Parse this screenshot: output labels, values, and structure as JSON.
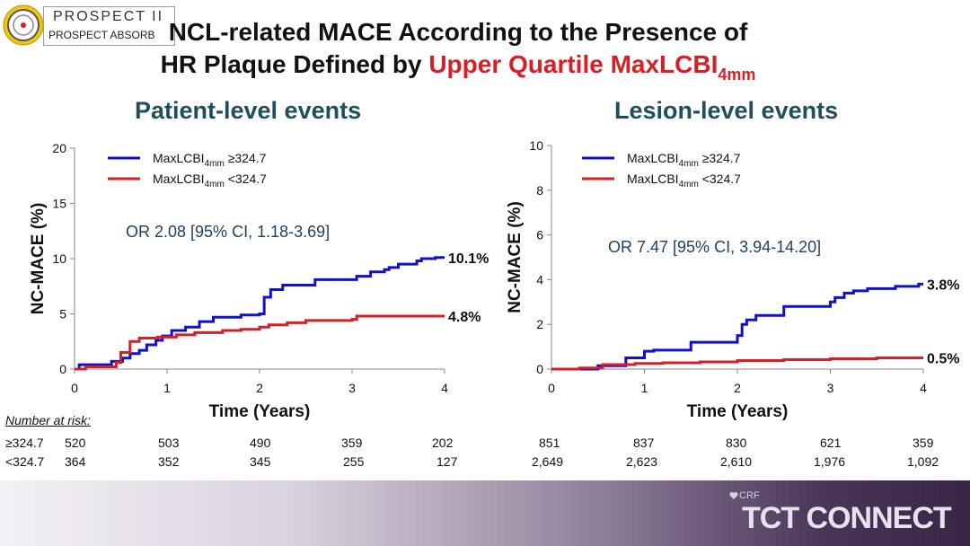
{
  "logo": {
    "line1": "PROSPECT II",
    "line2": "PROSPECT ABSORB",
    "icon": "prospect-seal-icon"
  },
  "title": {
    "line1": "NCL-related MACE According to the Presence of",
    "line2_prefix": "HR Plaque Defined by ",
    "line2_highlight": "Upper Quartile MaxLCBI",
    "line2_sub": "4mm",
    "highlight_color": "#d42027"
  },
  "panels": {
    "patient_title": "Patient-level events",
    "lesion_title": "Lesion-level events",
    "title_color": "#1f4e5f"
  },
  "chart_data": [
    {
      "type": "line",
      "title": "Patient-level events",
      "xlabel": "Time (Years)",
      "ylabel": "NC-MACE (%)",
      "xlim": [
        0,
        4
      ],
      "ylim": [
        0,
        20
      ],
      "xticks": [
        "0",
        "1",
        "2",
        "3",
        "4"
      ],
      "yticks": [
        "0",
        "5",
        "10",
        "15",
        "20"
      ],
      "legend_position": "top-left",
      "annotation": "OR 2.08 [95% CI, 1.18-3.69]",
      "series": [
        {
          "name_prefix": "MaxLCBI",
          "name_sub": "4mm",
          "name_suffix": " ≥324.7",
          "color": "#1111cc",
          "end_label": "10.1%",
          "x": [
            0,
            0.05,
            0.4,
            0.52,
            0.6,
            0.7,
            0.78,
            0.88,
            0.95,
            1.05,
            1.2,
            1.35,
            1.5,
            1.8,
            2.0,
            2.05,
            2.12,
            2.25,
            2.6,
            3.0,
            3.05,
            3.2,
            3.35,
            3.4,
            3.5,
            3.7,
            3.75,
            3.9,
            4.0
          ],
          "y": [
            0,
            0.4,
            0.7,
            1.0,
            1.4,
            1.7,
            2.2,
            2.6,
            3.0,
            3.5,
            3.8,
            4.3,
            4.7,
            4.9,
            5.0,
            6.5,
            7.2,
            7.6,
            8.1,
            8.1,
            8.4,
            8.8,
            9.0,
            9.2,
            9.5,
            9.8,
            10.0,
            10.1,
            10.1
          ]
        },
        {
          "name_prefix": "MaxLCBI",
          "name_sub": "4mm",
          "name_suffix": " <324.7",
          "color": "#d42027",
          "end_label": "4.8%",
          "x": [
            0,
            0.12,
            0.45,
            0.5,
            0.6,
            0.7,
            0.9,
            1.1,
            1.3,
            1.6,
            1.8,
            2.0,
            2.1,
            2.3,
            2.5,
            2.8,
            3.0,
            3.05,
            3.5,
            4.0
          ],
          "y": [
            0,
            0.2,
            0.6,
            1.5,
            2.5,
            2.8,
            2.9,
            3.1,
            3.3,
            3.5,
            3.6,
            3.8,
            4.0,
            4.2,
            4.4,
            4.4,
            4.5,
            4.8,
            4.8,
            4.8
          ]
        }
      ]
    },
    {
      "type": "line",
      "title": "Lesion-level events",
      "xlabel": "Time (Years)",
      "ylabel": "NC-MACE (%)",
      "xlim": [
        0,
        4
      ],
      "ylim": [
        0,
        10
      ],
      "xticks": [
        "0",
        "1",
        "2",
        "3",
        "4"
      ],
      "yticks": [
        "0",
        "2",
        "4",
        "6",
        "8",
        "10"
      ],
      "legend_position": "top-left",
      "annotation": "OR 7.47 [95% CI, 3.94-14.20]",
      "series": [
        {
          "name_prefix": "MaxLCBI",
          "name_sub": "4mm",
          "name_suffix": " ≥324.7",
          "color": "#1111cc",
          "end_label": "3.8%",
          "x": [
            0,
            0.5,
            0.8,
            1.0,
            1.1,
            1.5,
            1.95,
            2.0,
            2.05,
            2.1,
            2.2,
            2.5,
            2.9,
            3.0,
            3.05,
            3.15,
            3.25,
            3.4,
            3.7,
            3.95,
            4.0
          ],
          "y": [
            0,
            0.15,
            0.5,
            0.8,
            0.85,
            1.2,
            1.2,
            1.5,
            2.0,
            2.2,
            2.4,
            2.8,
            2.8,
            3.0,
            3.2,
            3.4,
            3.5,
            3.6,
            3.7,
            3.8,
            3.8
          ]
        },
        {
          "name_prefix": "MaxLCBI",
          "name_sub": "4mm",
          "name_suffix": " <324.7",
          "color": "#d42027",
          "end_label": "0.5%",
          "x": [
            0,
            0.3,
            0.55,
            0.9,
            1.2,
            1.6,
            2.0,
            2.5,
            3.0,
            3.5,
            4.0
          ],
          "y": [
            0,
            0.05,
            0.2,
            0.25,
            0.28,
            0.32,
            0.38,
            0.42,
            0.46,
            0.5,
            0.5
          ]
        }
      ]
    }
  ],
  "risk_table": {
    "heading": "Number at risk:",
    "rows": [
      {
        "label": "≥324.7",
        "patient": [
          "520",
          "503",
          "490",
          "359",
          "202"
        ],
        "lesion": [
          "851",
          "837",
          "830",
          "621",
          "359"
        ]
      },
      {
        "label": "<324.7",
        "patient": [
          "364",
          "352",
          "345",
          "255",
          "127"
        ],
        "lesion": [
          "2,649",
          "2,623",
          "2,610",
          "1,976",
          "1,092"
        ]
      }
    ]
  },
  "footer": {
    "brand_small": "CRF",
    "brand_large": "TCT CONNECT",
    "heart_icon": "heart-icon"
  }
}
